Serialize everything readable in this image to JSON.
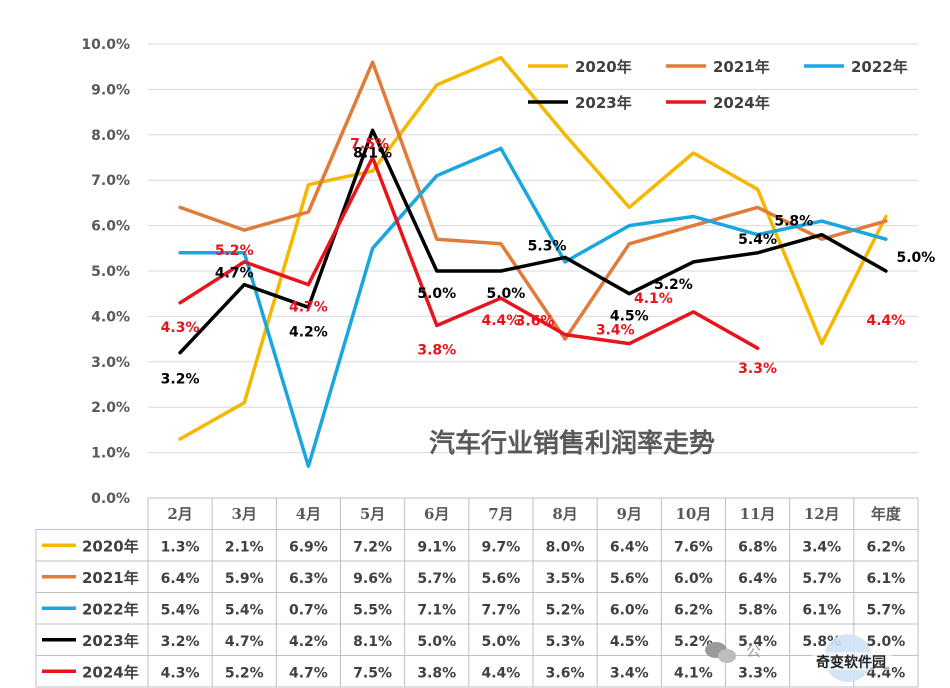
{
  "chart_data": {
    "type": "line",
    "title": "汽车行业销售利润率走势",
    "categories": [
      "2月",
      "3月",
      "4月",
      "5月",
      "6月",
      "7月",
      "8月",
      "9月",
      "10月",
      "11月",
      "12月",
      "年度"
    ],
    "y_ticks": [
      "0.0%",
      "1.0%",
      "2.0%",
      "3.0%",
      "4.0%",
      "5.0%",
      "6.0%",
      "7.0%",
      "8.0%",
      "9.0%",
      "10.0%"
    ],
    "ylim": [
      0,
      10
    ],
    "legend_position": "top-right",
    "grid": true,
    "series": [
      {
        "name": "2020年",
        "color": "#F5B800",
        "values": [
          1.3,
          2.1,
          6.9,
          7.2,
          9.1,
          9.7,
          8.0,
          6.4,
          7.6,
          6.8,
          3.4,
          6.2
        ],
        "labels": [
          "1.3%",
          "2.1%",
          "6.9%",
          "7.2%",
          "9.1%",
          "9.7%",
          "8.0%",
          "6.4%",
          "7.6%",
          "6.8%",
          "3.4%",
          "6.2%"
        ]
      },
      {
        "name": "2021年",
        "color": "#E07B39",
        "values": [
          6.4,
          5.9,
          6.3,
          9.6,
          5.7,
          5.6,
          3.5,
          5.6,
          6.0,
          6.4,
          5.7,
          6.1
        ],
        "labels": [
          "6.4%",
          "5.9%",
          "6.3%",
          "9.6%",
          "5.7%",
          "5.6%",
          "3.5%",
          "5.6%",
          "6.0%",
          "6.4%",
          "5.7%",
          "6.1%"
        ]
      },
      {
        "name": "2022年",
        "color": "#1AA6DF",
        "values": [
          5.4,
          5.4,
          0.7,
          5.5,
          7.1,
          7.7,
          5.2,
          6.0,
          6.2,
          5.8,
          6.1,
          5.7
        ],
        "labels": [
          "5.4%",
          "5.4%",
          "0.7%",
          "5.5%",
          "7.1%",
          "7.7%",
          "5.2%",
          "6.0%",
          "6.2%",
          "5.8%",
          "6.1%",
          "5.7%"
        ]
      },
      {
        "name": "2023年",
        "color": "#000000",
        "values": [
          3.2,
          4.7,
          4.2,
          8.1,
          5.0,
          5.0,
          5.3,
          4.5,
          5.2,
          5.4,
          5.8,
          5.0
        ],
        "labels": [
          "3.2%",
          "4.7%",
          "4.2%",
          "8.1%",
          "5.0%",
          "5.0%",
          "5.3%",
          "4.5%",
          "5.2%",
          "5.4%",
          "5.8%",
          "5.0%"
        ]
      },
      {
        "name": "2024年",
        "color": "#E8141C",
        "values": [
          4.3,
          5.2,
          4.7,
          7.5,
          3.8,
          4.4,
          3.6,
          3.4,
          4.1,
          3.3,
          null,
          4.4
        ],
        "labels": [
          "4.3%",
          "5.2%",
          "4.7%",
          "7.5%",
          "3.8%",
          "4.4%",
          "3.6%",
          "3.4%",
          "4.1%",
          "3.3%",
          "",
          "4.4%"
        ]
      }
    ]
  },
  "watermark": {
    "text": "奇变软件园",
    "partial": "公"
  }
}
